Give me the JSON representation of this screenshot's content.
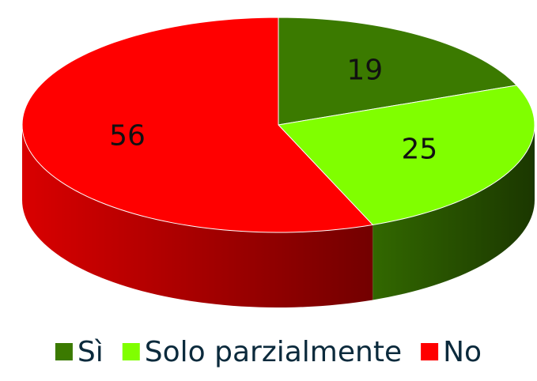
{
  "chart_data": {
    "type": "pie",
    "categories": [
      "Sì",
      "Solo parzialmente",
      "No"
    ],
    "values": [
      19,
      25,
      56
    ],
    "colors": [
      "#3b7a00",
      "#80ff00",
      "#ff0000"
    ],
    "legend": "bottom"
  }
}
